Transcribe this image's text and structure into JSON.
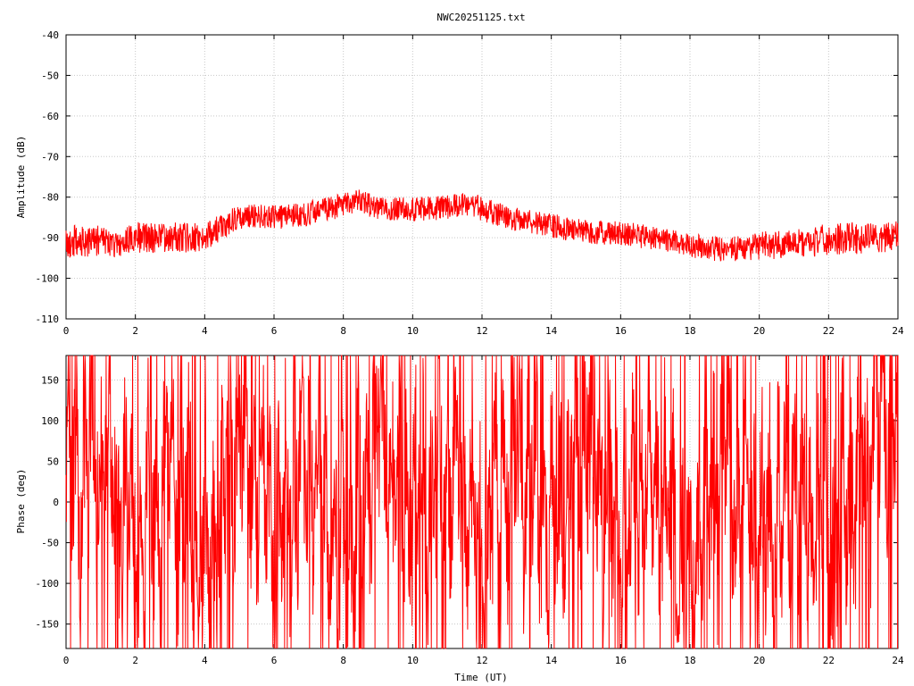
{
  "title": "NWC20251125.txt",
  "chart_data": [
    {
      "type": "line",
      "title": "NWC20251125.txt",
      "xlabel": "",
      "ylabel": "Amplitude (dB)",
      "xlim": [
        0,
        24
      ],
      "ylim": [
        -110,
        -40
      ],
      "xticks": [
        0,
        2,
        4,
        6,
        8,
        10,
        12,
        14,
        16,
        18,
        20,
        22,
        24
      ],
      "yticks": [
        -110,
        -100,
        -90,
        -80,
        -70,
        -60,
        -50,
        -40
      ],
      "x_tick_labels": [
        "0",
        "2",
        "4",
        "6",
        "8",
        "10",
        "12",
        "14",
        "16",
        "18",
        "20",
        "22",
        "24"
      ],
      "y_tick_labels": [
        "-110",
        "-100",
        "-90",
        "-80",
        "-70",
        "-60",
        "-50",
        "-40"
      ],
      "grid": true,
      "line_color": "#ff0000",
      "series": [
        {
          "x": [
            0,
            1,
            1.3,
            1.4,
            2,
            3,
            4,
            4.5,
            5,
            5.5,
            6,
            7,
            8,
            8.5,
            9,
            10,
            11,
            11.7,
            12,
            13,
            14,
            15,
            16,
            17,
            18,
            19,
            20,
            21,
            22,
            23,
            24
          ],
          "y": [
            -91,
            -90.5,
            -90.5,
            -92,
            -90,
            -90,
            -90,
            -87,
            -85,
            -84.5,
            -85,
            -84,
            -82,
            -81,
            -83,
            -83,
            -82.5,
            -81.5,
            -83,
            -85.5,
            -87,
            -88.5,
            -89,
            -90,
            -92,
            -93,
            -92,
            -91.5,
            -90.5,
            -90,
            -89.5
          ],
          "spread": [
            -4,
            -4,
            -4,
            -3,
            -4,
            -4,
            -3.5,
            -3.5,
            -3,
            -3,
            -3,
            -3,
            -3,
            -3,
            -3,
            -3,
            -3,
            -3,
            -3,
            -3,
            -3,
            -3,
            -3,
            -3,
            -3,
            -3,
            -3.5,
            -3.5,
            -4,
            -4,
            -4
          ]
        }
      ]
    },
    {
      "type": "line",
      "title": "",
      "xlabel": "Time (UT)",
      "ylabel": "Phase (deg)",
      "xlim": [
        0,
        24
      ],
      "ylim": [
        -180,
        180
      ],
      "xticks": [
        0,
        2,
        4,
        6,
        8,
        10,
        12,
        14,
        16,
        18,
        20,
        22,
        24
      ],
      "yticks": [
        -150,
        -100,
        -50,
        0,
        50,
        100,
        150
      ],
      "x_tick_labels": [
        "0",
        "2",
        "4",
        "6",
        "8",
        "10",
        "12",
        "14",
        "16",
        "18",
        "20",
        "22",
        "24"
      ],
      "y_tick_labels": [
        "-150",
        "-100",
        "-50",
        "0",
        "50",
        "100",
        "150"
      ],
      "grid": true,
      "line_color": "#ff0000",
      "series": [
        {
          "behavior": "wrapping",
          "x": [
            0,
            1,
            2,
            3,
            4,
            5,
            6,
            7,
            8,
            9,
            10,
            11,
            12,
            13,
            14,
            15,
            16,
            17,
            18,
            19,
            20,
            21,
            22,
            23,
            24
          ],
          "y": [
            20,
            60,
            -40,
            30,
            -70,
            80,
            -20,
            50,
            -90,
            100,
            -10,
            40,
            -60,
            70,
            -30,
            90,
            -50,
            20,
            -80,
            60,
            -40,
            30,
            -70,
            50,
            150
          ]
        }
      ]
    }
  ]
}
